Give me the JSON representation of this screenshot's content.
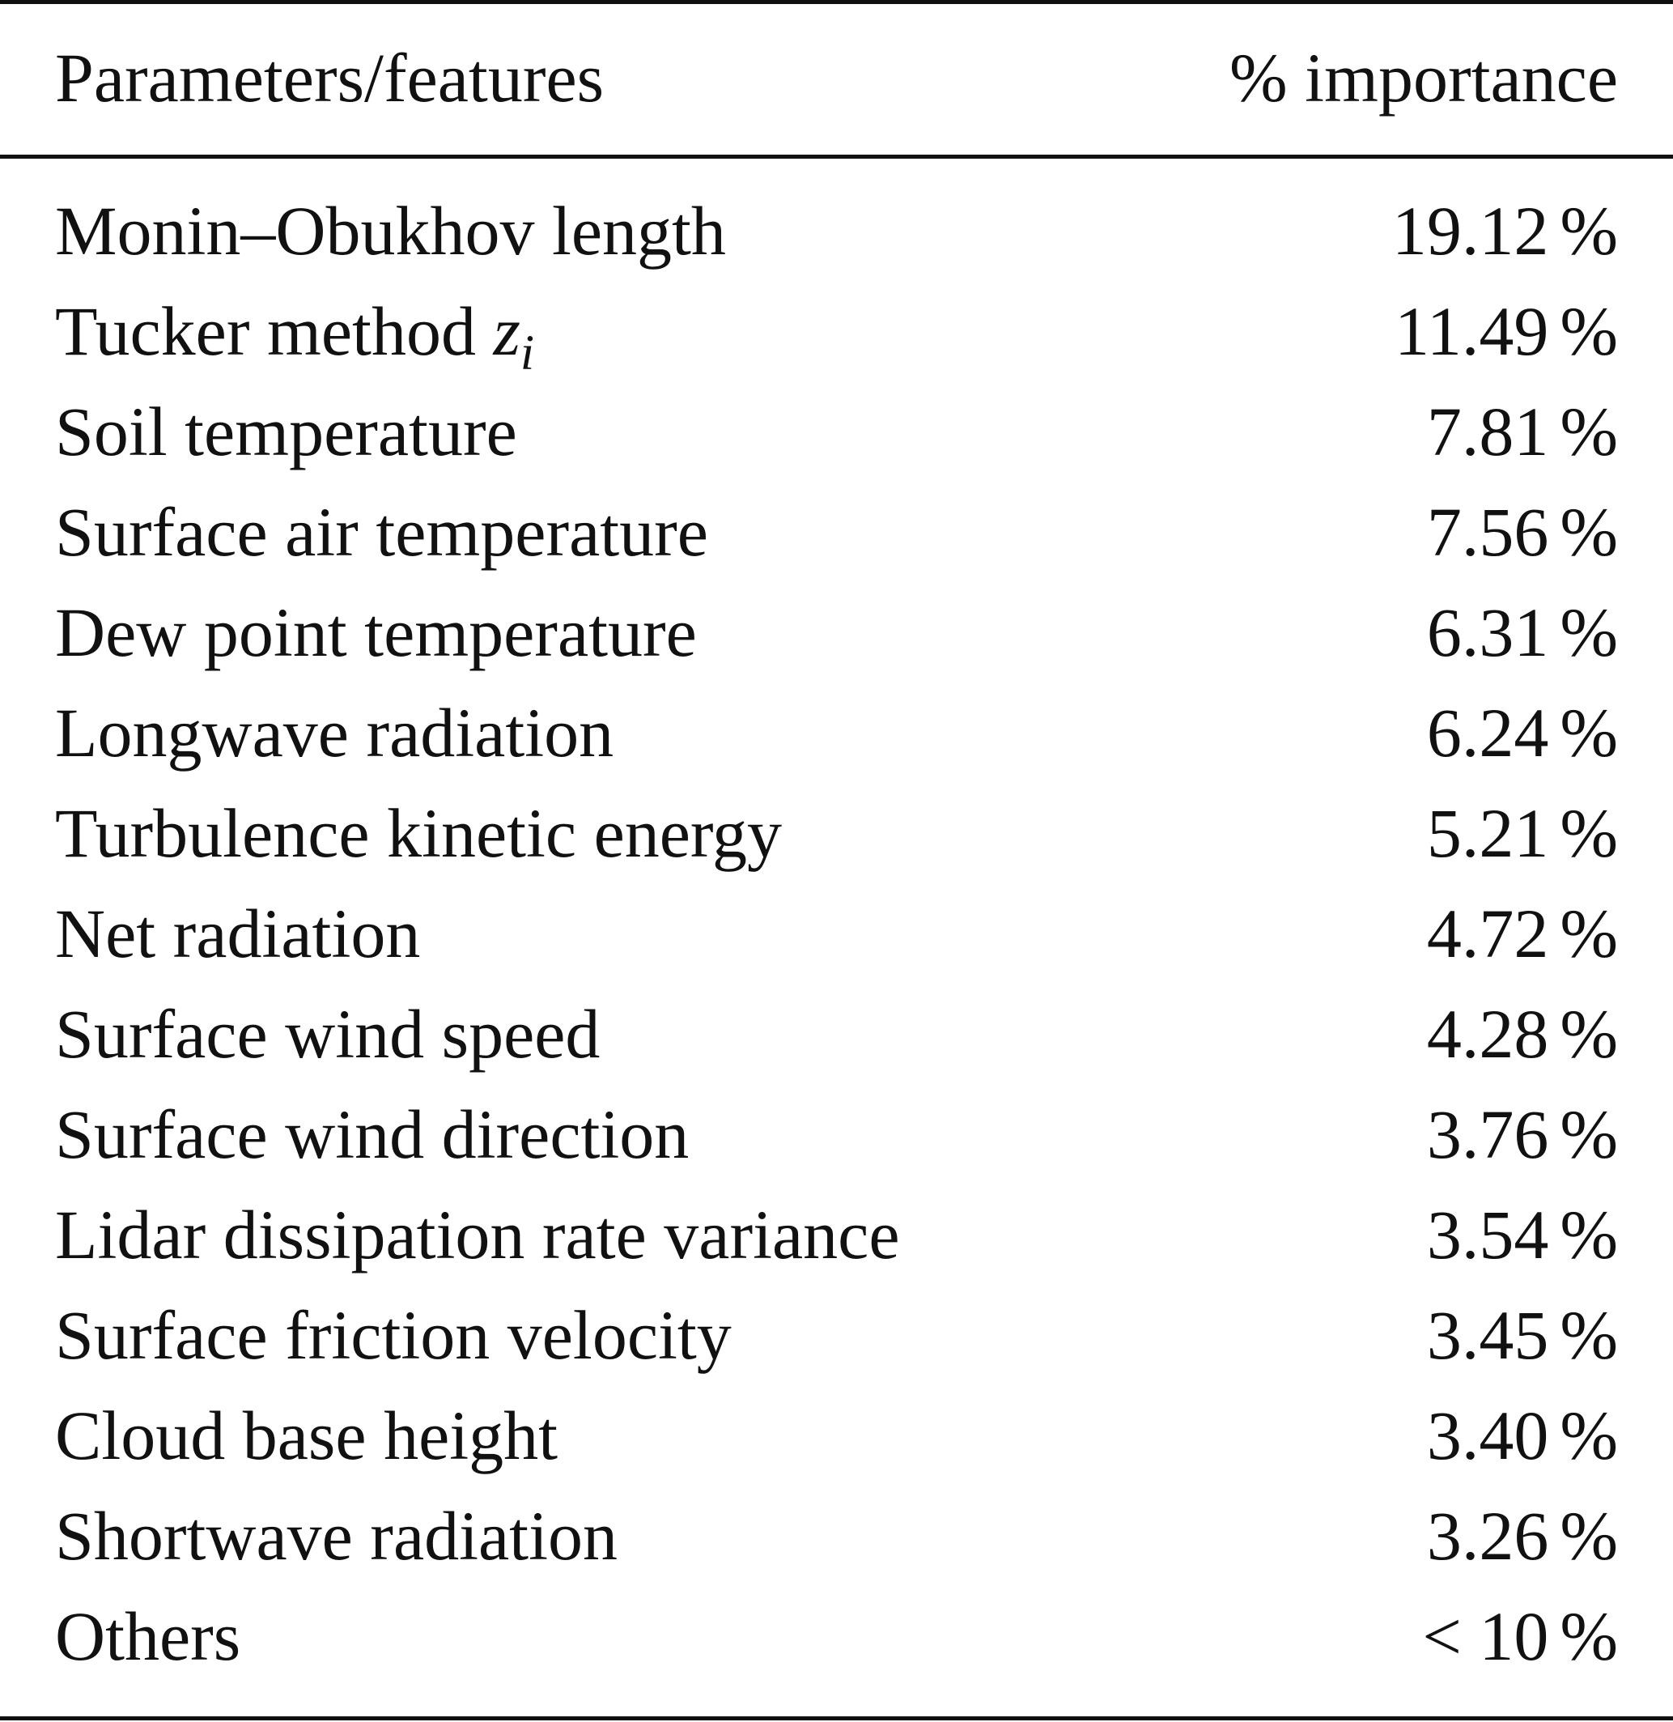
{
  "table": {
    "header": {
      "feature": "Parameters/features",
      "importance": "% importance"
    },
    "rows": [
      {
        "label": "Monin–Obukhov length",
        "value": "19.12",
        "unit": "%"
      },
      {
        "label_prefix": "Tucker method ",
        "math_base": "z",
        "math_sub": "i",
        "value": "11.49",
        "unit": "%"
      },
      {
        "label": "Soil temperature",
        "value": "7.81",
        "unit": "%"
      },
      {
        "label": "Surface air temperature",
        "value": "7.56",
        "unit": "%"
      },
      {
        "label": "Dew point temperature",
        "value": "6.31",
        "unit": "%"
      },
      {
        "label": "Longwave radiation",
        "value": "6.24",
        "unit": "%"
      },
      {
        "label": "Turbulence kinetic energy",
        "value": "5.21",
        "unit": "%"
      },
      {
        "label": "Net radiation",
        "value": "4.72",
        "unit": "%"
      },
      {
        "label": "Surface wind speed",
        "value": "4.28",
        "unit": "%"
      },
      {
        "label": "Surface wind direction",
        "value": "3.76",
        "unit": "%"
      },
      {
        "label": "Lidar dissipation rate variance",
        "value": "3.54",
        "unit": "%"
      },
      {
        "label": "Surface friction velocity",
        "value": "3.45",
        "unit": "%"
      },
      {
        "label": "Cloud base height",
        "value": "3.40",
        "unit": "%"
      },
      {
        "label": "Shortwave radiation",
        "value": "3.26",
        "unit": "%"
      },
      {
        "label": "Others",
        "value": "< 10",
        "unit": "%"
      }
    ]
  }
}
